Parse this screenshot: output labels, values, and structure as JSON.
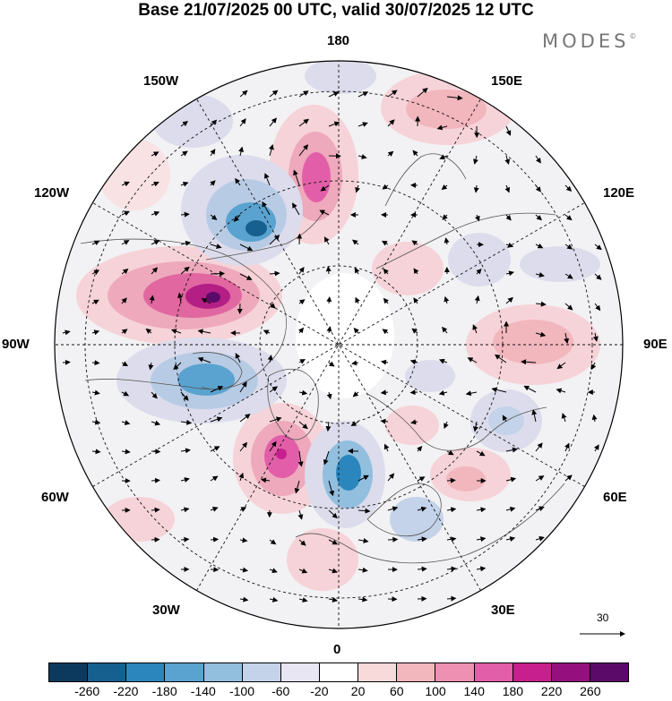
{
  "title": "Base 21/07/2025 00 UTC, valid 30/07/2025 12 UTC",
  "brand": "MODES",
  "brand_mark": "©",
  "longitude_labels": {
    "lon_180": "180",
    "lon_150e": "150E",
    "lon_120e": "120E",
    "lon_90e": "90E",
    "lon_60e": "60E",
    "lon_30e": "30E",
    "lon_0": "0",
    "lon_30w": "30W",
    "lon_60w": "60W",
    "lon_90w": "90W",
    "lon_120w": "120W",
    "lon_150w": "150W"
  },
  "reference_vector": "30",
  "colorbar": {
    "colors": [
      "#0c3a5e",
      "#15608f",
      "#2a86bd",
      "#5aa3d0",
      "#93bfdf",
      "#c4d3e9",
      "#e8e6f2",
      "#ffffff",
      "#f8dada",
      "#f2b6bd",
      "#ee90b2",
      "#e35ea8",
      "#c71f8e",
      "#95107e",
      "#5c0a6a"
    ],
    "ticks": [
      "-260",
      "-220",
      "-180",
      "-140",
      "-100",
      "-60",
      "-20",
      "20",
      "60",
      "100",
      "140",
      "180",
      "220",
      "260"
    ]
  },
  "anomaly_centers": [
    {
      "name": "north-america-high",
      "value": 260,
      "sign": "positive"
    },
    {
      "name": "bering-low",
      "value": -200,
      "sign": "negative"
    },
    {
      "name": "chukchi-high",
      "value": 180,
      "sign": "positive"
    },
    {
      "name": "labrador-low",
      "value": -180,
      "sign": "negative"
    },
    {
      "name": "greenland-high",
      "value": 180,
      "sign": "positive"
    },
    {
      "name": "iceland-low",
      "value": -180,
      "sign": "negative"
    },
    {
      "name": "pacific-high",
      "value": 100,
      "sign": "positive"
    },
    {
      "name": "siberia-high",
      "value": 100,
      "sign": "positive"
    },
    {
      "name": "scandinavia-low",
      "value": -100,
      "sign": "negative"
    },
    {
      "name": "europe-high",
      "value": 100,
      "sign": "positive"
    }
  ]
}
